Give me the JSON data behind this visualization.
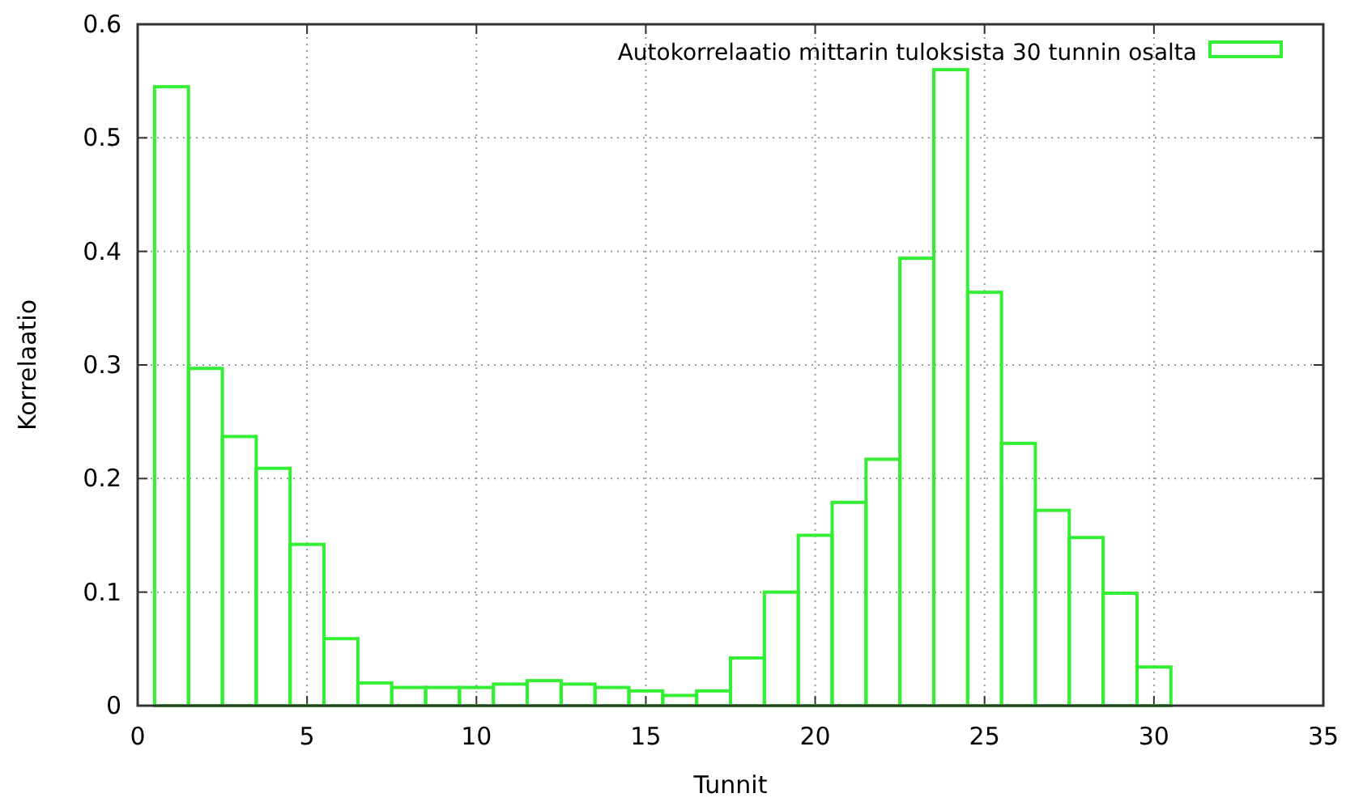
{
  "chart_data": {
    "type": "histogram",
    "xlabel": "Tunnit",
    "ylabel": "Korrelaatio",
    "bins": [
      0.5,
      1.5,
      2.5,
      3.5,
      4.5,
      5.5,
      6.5,
      7.5,
      8.5,
      9.5,
      10.5,
      11.5,
      12.5,
      13.5,
      14.5,
      15.5,
      16.5,
      17.5,
      18.5,
      19.5,
      20.5,
      21.5,
      22.5,
      23.5,
      24.5,
      25.5,
      26.5,
      27.5,
      28.5,
      29.5,
      30.5
    ],
    "series": [
      {
        "name": "Autokorrelaatio mittarin tuloksista 30 tunnin osalta",
        "color": "#33ee33",
        "values": [
          0.545,
          0.297,
          0.237,
          0.209,
          0.142,
          0.059,
          0.02,
          0.016,
          0.016,
          0.016,
          0.019,
          0.022,
          0.019,
          0.016,
          0.013,
          0.009,
          0.013,
          0.042,
          0.1,
          0.15,
          0.179,
          0.217,
          0.394,
          0.56,
          0.364,
          0.231,
          0.172,
          0.148,
          0.099,
          0.034
        ]
      }
    ],
    "xlim": [
      0,
      35
    ],
    "xticks": [
      0,
      5,
      10,
      15,
      20,
      25,
      30,
      35
    ],
    "ylim": [
      0,
      0.6
    ],
    "yticks": [
      0,
      0.1,
      0.2,
      0.3,
      0.4,
      0.5,
      0.6
    ],
    "grid": true,
    "legend": "top right"
  }
}
